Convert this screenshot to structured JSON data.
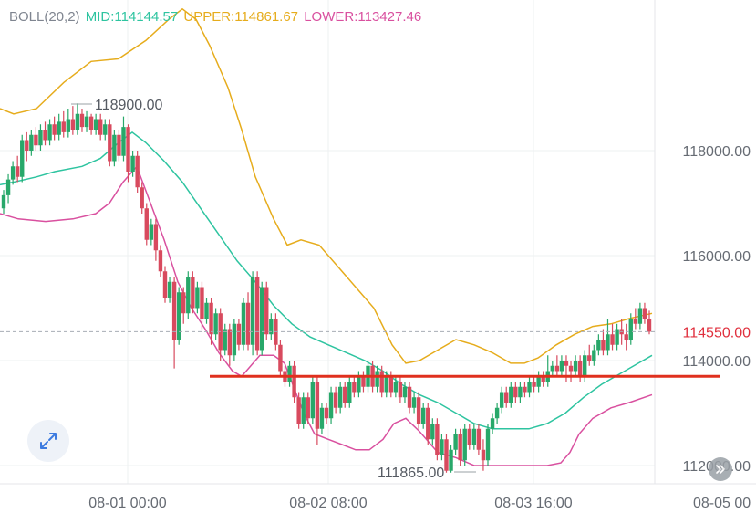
{
  "indicator": {
    "name": "BOLL(20,2)",
    "mid_label": "MID:",
    "mid_value": "114144.57",
    "upper_label": "UPPER:",
    "upper_value": "114861.67",
    "lower_label": "LOWER:",
    "lower_value": "113427.46"
  },
  "colors": {
    "mid": "#2ec4a0",
    "upper": "#e6ac1c",
    "lower": "#d9509f",
    "up_candle": "#28a86a",
    "down_candle": "#d84a5e",
    "support_line": "#e0301e",
    "price_tag": "#e0303e"
  },
  "chart_data": {
    "type": "candlestick",
    "y_axis_ticks": [
      "118000.00",
      "116000.00",
      "114000.00",
      "112000.00"
    ],
    "y_range": [
      111400,
      120300
    ],
    "x_axis_ticks": [
      "08-01 00:00",
      "08-02 08:00",
      "08-03 16:00",
      "08-05 00"
    ],
    "current_price": "114550.00",
    "high_marker": "118900.00",
    "low_marker": "111865.00",
    "support_level": 113700,
    "upper_band": [
      [
        0,
        118800
      ],
      [
        15,
        118700
      ],
      [
        40,
        118800
      ],
      [
        70,
        119300
      ],
      [
        100,
        119700
      ],
      [
        130,
        119750
      ],
      [
        160,
        120100
      ],
      [
        185,
        120500
      ],
      [
        200,
        120700
      ],
      [
        215,
        120500
      ],
      [
        230,
        120000
      ],
      [
        250,
        119200
      ],
      [
        265,
        118400
      ],
      [
        280,
        117500
      ],
      [
        300,
        116700
      ],
      [
        315,
        116200
      ],
      [
        330,
        116300
      ],
      [
        350,
        116200
      ],
      [
        370,
        115800
      ],
      [
        390,
        115400
      ],
      [
        410,
        115000
      ],
      [
        430,
        114300
      ],
      [
        445,
        113950
      ],
      [
        460,
        114000
      ],
      [
        480,
        114200
      ],
      [
        500,
        114400
      ],
      [
        520,
        114300
      ],
      [
        540,
        114150
      ],
      [
        560,
        113950
      ],
      [
        575,
        113950
      ],
      [
        590,
        114050
      ],
      [
        610,
        114300
      ],
      [
        630,
        114500
      ],
      [
        650,
        114650
      ],
      [
        670,
        114700
      ],
      [
        690,
        114800
      ],
      [
        715,
        114900
      ]
    ],
    "mid_band": [
      [
        0,
        117350
      ],
      [
        15,
        117400
      ],
      [
        40,
        117500
      ],
      [
        60,
        117600
      ],
      [
        90,
        117700
      ],
      [
        110,
        117850
      ],
      [
        130,
        118150
      ],
      [
        145,
        118350
      ],
      [
        160,
        118150
      ],
      [
        180,
        117800
      ],
      [
        200,
        117400
      ],
      [
        220,
        116900
      ],
      [
        240,
        116400
      ],
      [
        260,
        115900
      ],
      [
        280,
        115500
      ],
      [
        300,
        115050
      ],
      [
        320,
        114700
      ],
      [
        340,
        114450
      ],
      [
        360,
        114300
      ],
      [
        380,
        114150
      ],
      [
        400,
        114000
      ],
      [
        420,
        113800
      ],
      [
        440,
        113550
      ],
      [
        460,
        113350
      ],
      [
        480,
        113200
      ],
      [
        500,
        113000
      ],
      [
        520,
        112800
      ],
      [
        540,
        112700
      ],
      [
        560,
        112700
      ],
      [
        580,
        112700
      ],
      [
        600,
        112800
      ],
      [
        620,
        113000
      ],
      [
        640,
        113300
      ],
      [
        660,
        113550
      ],
      [
        680,
        113750
      ],
      [
        700,
        113950
      ],
      [
        715,
        114100
      ]
    ],
    "lower_band": [
      [
        0,
        116800
      ],
      [
        20,
        116700
      ],
      [
        50,
        116650
      ],
      [
        80,
        116700
      ],
      [
        105,
        116800
      ],
      [
        120,
        117000
      ],
      [
        135,
        117400
      ],
      [
        150,
        117700
      ],
      [
        165,
        117000
      ],
      [
        180,
        116300
      ],
      [
        195,
        115500
      ],
      [
        210,
        115000
      ],
      [
        225,
        114600
      ],
      [
        240,
        114150
      ],
      [
        255,
        113800
      ],
      [
        265,
        113700
      ],
      [
        275,
        113900
      ],
      [
        285,
        114100
      ],
      [
        300,
        114100
      ],
      [
        312,
        113950
      ],
      [
        322,
        113500
      ],
      [
        333,
        113000
      ],
      [
        345,
        112600
      ],
      [
        360,
        112500
      ],
      [
        375,
        112400
      ],
      [
        390,
        112300
      ],
      [
        405,
        112300
      ],
      [
        420,
        112500
      ],
      [
        432,
        112800
      ],
      [
        445,
        112900
      ],
      [
        460,
        112650
      ],
      [
        480,
        112250
      ],
      [
        500,
        112150
      ],
      [
        520,
        112000
      ],
      [
        540,
        112000
      ],
      [
        560,
        112000
      ],
      [
        580,
        112000
      ],
      [
        600,
        112000
      ],
      [
        615,
        112050
      ],
      [
        625,
        112250
      ],
      [
        635,
        112600
      ],
      [
        650,
        112900
      ],
      [
        670,
        113100
      ],
      [
        690,
        113200
      ],
      [
        715,
        113350
      ]
    ],
    "candles": [
      [
        116900,
        117150,
        116800,
        117250
      ],
      [
        117150,
        117450,
        117000,
        117550
      ],
      [
        117450,
        117700,
        117350,
        117800
      ],
      [
        117700,
        117500,
        117400,
        117900
      ],
      [
        117500,
        118200,
        117400,
        118300
      ],
      [
        118200,
        118000,
        117800,
        118350
      ],
      [
        118000,
        118300,
        117900,
        118400
      ],
      [
        118300,
        118100,
        118000,
        118450
      ],
      [
        118100,
        118400,
        118000,
        118500
      ],
      [
        118400,
        118200,
        118100,
        118550
      ],
      [
        118200,
        118500,
        118100,
        118600
      ],
      [
        118500,
        118300,
        118200,
        118650
      ],
      [
        118300,
        118550,
        118200,
        118700
      ],
      [
        118550,
        118350,
        118250,
        118750
      ],
      [
        118350,
        118600,
        118250,
        118800
      ],
      [
        118600,
        118400,
        118300,
        118850
      ],
      [
        118400,
        118700,
        118300,
        118900
      ],
      [
        118700,
        118450,
        118350,
        118800
      ],
      [
        118450,
        118650,
        118350,
        118750
      ],
      [
        118650,
        118400,
        118300,
        118700
      ],
      [
        118400,
        118600,
        118300,
        118700
      ],
      [
        118600,
        118300,
        118200,
        118700
      ],
      [
        118300,
        118500,
        118200,
        118600
      ],
      [
        118500,
        117800,
        117700,
        118600
      ],
      [
        117800,
        118300,
        117700,
        118400
      ],
      [
        118300,
        117900,
        117800,
        118400
      ],
      [
        117900,
        118450,
        117800,
        118650
      ],
      [
        118450,
        117600,
        117400,
        118500
      ],
      [
        117600,
        117900,
        117500,
        118000
      ],
      [
        117900,
        117300,
        117200,
        118000
      ],
      [
        117300,
        116900,
        116800,
        117400
      ],
      [
        116900,
        116300,
        116200,
        117000
      ],
      [
        116300,
        116600,
        116200,
        116700
      ],
      [
        116600,
        116100,
        115900,
        116700
      ],
      [
        116100,
        115700,
        115600,
        116200
      ],
      [
        115700,
        115200,
        115100,
        115800
      ],
      [
        115200,
        115500,
        115100,
        115600
      ],
      [
        115500,
        114400,
        113850,
        115600
      ],
      [
        114400,
        115300,
        114300,
        115400
      ],
      [
        115300,
        114900,
        114700,
        115400
      ],
      [
        114900,
        115600,
        114800,
        115700
      ],
      [
        115600,
        115000,
        114900,
        115700
      ],
      [
        115000,
        115400,
        114900,
        115500
      ],
      [
        115400,
        114800,
        114600,
        115500
      ],
      [
        114800,
        115100,
        114700,
        115200
      ],
      [
        115100,
        114500,
        114300,
        115200
      ],
      [
        114500,
        114900,
        114400,
        115000
      ],
      [
        114900,
        114200,
        114000,
        115000
      ],
      [
        114200,
        114600,
        114100,
        114700
      ],
      [
        114600,
        114100,
        113900,
        114700
      ],
      [
        114100,
        114700,
        114000,
        114800
      ],
      [
        114700,
        114300,
        114200,
        114800
      ],
      [
        114300,
        115100,
        114200,
        115200
      ],
      [
        115100,
        114300,
        114200,
        115300
      ],
      [
        114300,
        115600,
        114100,
        115700
      ],
      [
        115600,
        114200,
        114100,
        115700
      ],
      [
        114200,
        115400,
        114100,
        115500
      ],
      [
        115400,
        114500,
        114400,
        115500
      ],
      [
        114500,
        114800,
        114400,
        114900
      ],
      [
        114800,
        114300,
        114200,
        114900
      ],
      [
        114300,
        113800,
        113700,
        114400
      ],
      [
        113800,
        113600,
        113500,
        113900
      ],
      [
        113600,
        113900,
        113500,
        114000
      ],
      [
        113900,
        113300,
        113200,
        114000
      ],
      [
        113300,
        112800,
        112700,
        113400
      ],
      [
        112800,
        113300,
        112700,
        113400
      ],
      [
        113300,
        112900,
        112800,
        113400
      ],
      [
        112900,
        113600,
        112800,
        113700
      ],
      [
        113600,
        112700,
        112400,
        113700
      ],
      [
        112700,
        113100,
        112600,
        113200
      ],
      [
        113100,
        112900,
        112800,
        113200
      ],
      [
        112900,
        113400,
        112800,
        113500
      ],
      [
        113400,
        113100,
        113000,
        113500
      ],
      [
        113100,
        113500,
        113000,
        113600
      ],
      [
        113500,
        113200,
        113100,
        113600
      ],
      [
        113200,
        113600,
        113100,
        113700
      ],
      [
        113600,
        113400,
        113300,
        113700
      ],
      [
        113400,
        113700,
        113300,
        113800
      ],
      [
        113700,
        113500,
        113400,
        113800
      ],
      [
        113500,
        113900,
        113400,
        114000
      ],
      [
        113900,
        113500,
        113400,
        114000
      ],
      [
        113500,
        113800,
        113400,
        113900
      ],
      [
        113800,
        113400,
        113300,
        113900
      ],
      [
        113400,
        113700,
        113300,
        113800
      ],
      [
        113700,
        113400,
        113300,
        113800
      ],
      [
        113400,
        113600,
        113300,
        113700
      ],
      [
        113600,
        113300,
        113200,
        113700
      ],
      [
        113300,
        113500,
        113200,
        113600
      ],
      [
        113500,
        113100,
        113000,
        113600
      ],
      [
        113100,
        113300,
        113000,
        113400
      ],
      [
        113300,
        112800,
        112700,
        113400
      ],
      [
        112800,
        113100,
        112700,
        113200
      ],
      [
        113100,
        112500,
        112400,
        113200
      ],
      [
        112500,
        112800,
        112400,
        112900
      ],
      [
        112800,
        112200,
        112100,
        112900
      ],
      [
        112200,
        112500,
        112100,
        112600
      ],
      [
        112500,
        111900,
        111865,
        112600
      ],
      [
        111900,
        112300,
        111865,
        112400
      ],
      [
        112300,
        112600,
        112200,
        112700
      ],
      [
        112600,
        112100,
        112000,
        112700
      ],
      [
        112100,
        112700,
        112000,
        112800
      ],
      [
        112700,
        112400,
        112300,
        112800
      ],
      [
        112400,
        112700,
        112300,
        112800
      ],
      [
        112700,
        112300,
        112200,
        112800
      ],
      [
        112300,
        112100,
        111900,
        112500
      ],
      [
        112100,
        112700,
        112000,
        112800
      ],
      [
        112700,
        112900,
        112600,
        113000
      ],
      [
        112900,
        113100,
        112800,
        113200
      ],
      [
        113100,
        113400,
        113000,
        113500
      ],
      [
        113400,
        113200,
        113100,
        113500
      ],
      [
        113200,
        113500,
        113100,
        113600
      ],
      [
        113500,
        113300,
        113200,
        113600
      ],
      [
        113300,
        113500,
        113200,
        113600
      ],
      [
        113500,
        113400,
        113300,
        113600
      ],
      [
        113400,
        113600,
        113300,
        113700
      ],
      [
        113600,
        113500,
        113400,
        113700
      ],
      [
        113500,
        113700,
        113400,
        113800
      ],
      [
        113700,
        113600,
        113500,
        113800
      ],
      [
        113600,
        113800,
        113500,
        114100
      ],
      [
        113800,
        113900,
        113700,
        114000
      ],
      [
        113900,
        113800,
        113700,
        114100
      ],
      [
        113800,
        114000,
        113700,
        114100
      ],
      [
        114000,
        113900,
        113600,
        114100
      ],
      [
        113900,
        113800,
        113600,
        114000
      ],
      [
        113800,
        114000,
        113700,
        114100
      ],
      [
        114000,
        113700,
        113600,
        114100
      ],
      [
        113700,
        114100,
        113600,
        114200
      ],
      [
        114100,
        114000,
        113900,
        114300
      ],
      [
        114000,
        114200,
        113900,
        114300
      ],
      [
        114200,
        114400,
        114100,
        114500
      ],
      [
        114400,
        114200,
        114100,
        114600
      ],
      [
        114200,
        114500,
        114100,
        114800
      ],
      [
        114500,
        114300,
        114200,
        114700
      ],
      [
        114300,
        114600,
        114200,
        114700
      ],
      [
        114600,
        114500,
        114300,
        114800
      ],
      [
        114500,
        114400,
        114200,
        114700
      ],
      [
        114400,
        114800,
        114300,
        114900
      ],
      [
        114800,
        114700,
        114600,
        115000
      ],
      [
        114700,
        115000,
        114600,
        115100
      ],
      [
        115000,
        114800,
        114700,
        115100
      ],
      [
        114800,
        114550,
        114500,
        114950
      ]
    ]
  },
  "controls": {
    "expand_icon": "expand-arrows-icon",
    "scroll_icon": "chevron-right-icon"
  }
}
